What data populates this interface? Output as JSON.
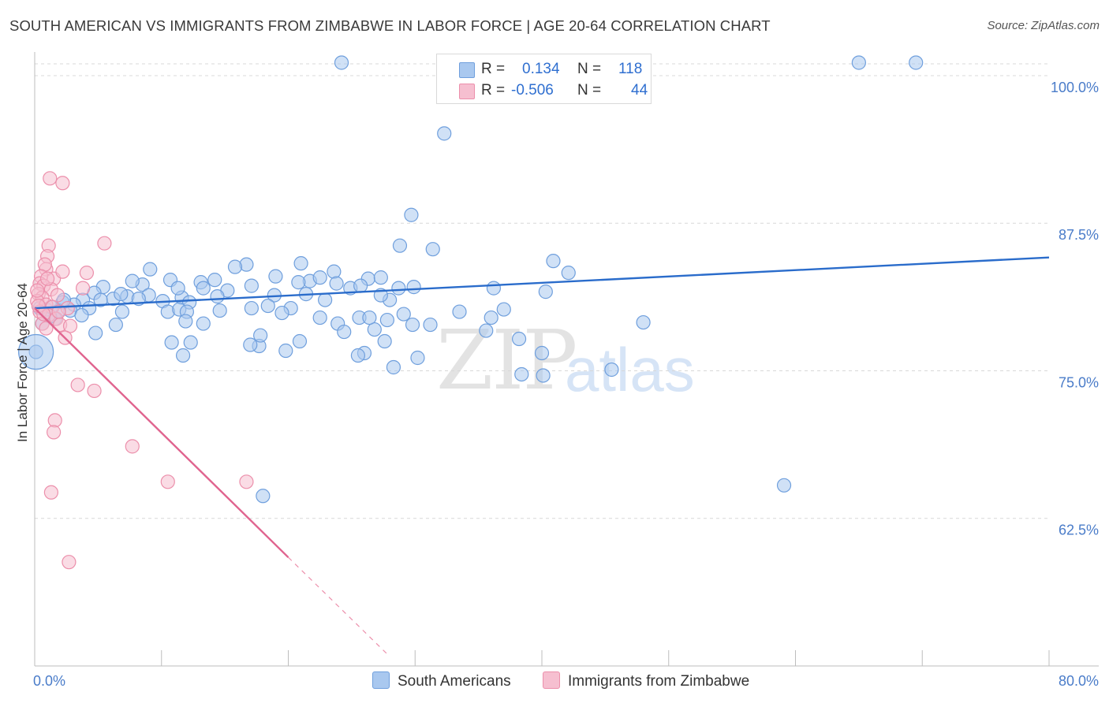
{
  "title": "SOUTH AMERICAN VS IMMIGRANTS FROM ZIMBABWE IN LABOR FORCE | AGE 20-64 CORRELATION CHART",
  "source": "Source: ZipAtlas.com",
  "watermark": {
    "zip": "ZIP",
    "atlas": "atlas"
  },
  "legend": {
    "r_label": "R =",
    "n_label": "N =",
    "south_american": {
      "r": "0.134",
      "n": "118"
    },
    "zimbabwe": {
      "r": "-0.506",
      "n": "44"
    }
  },
  "colors": {
    "south_american_fill": "#a9c8ef",
    "south_american_stroke": "#6f9fdd",
    "south_american_line": "#2a6ccb",
    "zimbabwe_fill": "#f6bfd0",
    "zimbabwe_stroke": "#ec8fab",
    "zimbabwe_line": "#e0648f",
    "axis_text": "#4a7cc9"
  },
  "chart_data": {
    "type": "scatter",
    "title": "SOUTH AMERICAN VS IMMIGRANTS FROM ZIMBABWE IN LABOR FORCE | AGE 20-64 CORRELATION CHART",
    "xlabel": "",
    "ylabel": "In Labor Force | Age 20-64",
    "xlim": [
      0,
      80
    ],
    "ylim": [
      50,
      102
    ],
    "x_tick_labels": [
      "0.0%",
      "80.0%"
    ],
    "y_ticks": [
      62.5,
      75.0,
      87.5,
      100.0
    ],
    "y_tick_labels": [
      "62.5%",
      "75.0%",
      "87.5%",
      "100.0%"
    ],
    "grid": true,
    "legend_position": "top-center",
    "series": [
      {
        "name": "South Americans",
        "r": 0.134,
        "n": 118,
        "trend": {
          "x": [
            0,
            80
          ],
          "y": [
            80.3,
            84.6
          ]
        },
        "points": [
          [
            24.2,
            101.1
          ],
          [
            32.5,
            101.1
          ],
          [
            65.0,
            101.1
          ],
          [
            69.5,
            101.1
          ],
          [
            32.3,
            95.1
          ],
          [
            29.7,
            88.2
          ],
          [
            28.8,
            85.6
          ],
          [
            31.4,
            85.3
          ],
          [
            40.9,
            84.3
          ],
          [
            42.1,
            83.3
          ],
          [
            16.7,
            84.0
          ],
          [
            21.0,
            84.1
          ],
          [
            23.6,
            83.4
          ],
          [
            28.0,
            81.0
          ],
          [
            29.9,
            82.1
          ],
          [
            36.2,
            82.0
          ],
          [
            18.9,
            81.4
          ],
          [
            17.1,
            82.2
          ],
          [
            15.2,
            81.8
          ],
          [
            15.8,
            83.8
          ],
          [
            19.0,
            83.0
          ],
          [
            21.7,
            82.6
          ],
          [
            22.5,
            82.9
          ],
          [
            20.8,
            82.5
          ],
          [
            23.8,
            82.4
          ],
          [
            24.9,
            82.0
          ],
          [
            26.3,
            82.8
          ],
          [
            25.7,
            82.2
          ],
          [
            27.3,
            82.9
          ],
          [
            28.7,
            82.0
          ],
          [
            9.1,
            83.6
          ],
          [
            10.7,
            82.7
          ],
          [
            13.1,
            82.5
          ],
          [
            14.2,
            82.7
          ],
          [
            8.5,
            82.3
          ],
          [
            7.7,
            82.6
          ],
          [
            7.3,
            81.3
          ],
          [
            9.0,
            81.4
          ],
          [
            10.1,
            80.9
          ],
          [
            11.6,
            81.2
          ],
          [
            12.2,
            80.8
          ],
          [
            11.3,
            82.0
          ],
          [
            5.4,
            82.1
          ],
          [
            4.7,
            81.6
          ],
          [
            6.2,
            81.1
          ],
          [
            3.8,
            81.0
          ],
          [
            3.1,
            80.6
          ],
          [
            4.3,
            80.3
          ],
          [
            2.8,
            80.1
          ],
          [
            2.2,
            80.8
          ],
          [
            1.9,
            80.1
          ],
          [
            1.6,
            79.4
          ],
          [
            0.9,
            80.2
          ],
          [
            1.2,
            79.6
          ],
          [
            0.6,
            79.0
          ],
          [
            0.4,
            80.3
          ],
          [
            0.1,
            76.6
          ],
          [
            4.8,
            78.2
          ],
          [
            6.4,
            78.9
          ],
          [
            6.9,
            80.0
          ],
          [
            10.5,
            80.0
          ],
          [
            11.4,
            80.2
          ],
          [
            12.0,
            80.0
          ],
          [
            11.9,
            79.2
          ],
          [
            13.3,
            79.0
          ],
          [
            10.8,
            77.4
          ],
          [
            12.3,
            77.4
          ],
          [
            14.6,
            80.1
          ],
          [
            17.1,
            80.3
          ],
          [
            18.4,
            80.5
          ],
          [
            20.2,
            80.3
          ],
          [
            19.5,
            79.9
          ],
          [
            22.5,
            79.5
          ],
          [
            23.9,
            79.0
          ],
          [
            24.4,
            78.3
          ],
          [
            25.6,
            79.5
          ],
          [
            26.8,
            78.5
          ],
          [
            27.6,
            77.5
          ],
          [
            29.1,
            79.8
          ],
          [
            29.8,
            78.9
          ],
          [
            31.2,
            78.9
          ],
          [
            30.2,
            76.1
          ],
          [
            26.0,
            76.5
          ],
          [
            25.5,
            76.3
          ],
          [
            28.3,
            75.3
          ],
          [
            35.6,
            78.4
          ],
          [
            38.2,
            77.7
          ],
          [
            40.0,
            76.5
          ],
          [
            38.4,
            74.7
          ],
          [
            40.1,
            74.6
          ],
          [
            45.5,
            75.1
          ],
          [
            48.0,
            79.1
          ],
          [
            40.3,
            81.7
          ],
          [
            36.0,
            79.5
          ],
          [
            27.3,
            81.4
          ],
          [
            17.7,
            77.1
          ],
          [
            19.8,
            76.7
          ],
          [
            20.9,
            77.5
          ],
          [
            17.0,
            77.2
          ],
          [
            11.7,
            76.3
          ],
          [
            17.8,
            78.0
          ],
          [
            21.4,
            81.5
          ],
          [
            22.9,
            81.0
          ],
          [
            14.4,
            81.3
          ],
          [
            13.3,
            82.0
          ],
          [
            8.2,
            81.1
          ],
          [
            6.8,
            81.5
          ],
          [
            5.2,
            81.0
          ],
          [
            3.7,
            79.7
          ],
          [
            1.3,
            80.4
          ],
          [
            2.3,
            81.0
          ],
          [
            18.0,
            64.4
          ],
          [
            59.1,
            65.3
          ],
          [
            27.8,
            79.3
          ],
          [
            33.5,
            80.0
          ],
          [
            26.4,
            79.5
          ],
          [
            37.0,
            80.2
          ]
        ]
      },
      {
        "name": "Immigrants from Zimbabwe",
        "r": -0.506,
        "n": 44,
        "trend": {
          "x": [
            0,
            20
          ],
          "y": [
            80.3,
            59.2
          ],
          "dashed_extension": {
            "x": [
              20,
              28
            ],
            "y": [
              59.2,
              50.8
            ]
          }
        },
        "points": [
          [
            1.2,
            91.3
          ],
          [
            2.2,
            90.9
          ],
          [
            5.5,
            85.8
          ],
          [
            1.1,
            85.6
          ],
          [
            1.0,
            84.7
          ],
          [
            0.9,
            83.6
          ],
          [
            0.8,
            84.0
          ],
          [
            0.5,
            83.0
          ],
          [
            1.5,
            82.8
          ],
          [
            2.2,
            83.4
          ],
          [
            4.1,
            83.3
          ],
          [
            0.4,
            82.4
          ],
          [
            0.7,
            82.2
          ],
          [
            1.3,
            81.9
          ],
          [
            0.3,
            81.5
          ],
          [
            0.6,
            81.2
          ],
          [
            1.8,
            81.4
          ],
          [
            0.2,
            80.9
          ],
          [
            0.9,
            80.6
          ],
          [
            1.4,
            80.4
          ],
          [
            2.6,
            80.3
          ],
          [
            0.4,
            80.0
          ],
          [
            1.1,
            79.7
          ],
          [
            1.7,
            79.4
          ],
          [
            0.6,
            79.0
          ],
          [
            2.0,
            78.9
          ],
          [
            2.8,
            78.8
          ],
          [
            0.9,
            78.6
          ],
          [
            2.4,
            77.8
          ],
          [
            0.3,
            80.5
          ],
          [
            3.4,
            73.8
          ],
          [
            4.7,
            73.3
          ],
          [
            1.6,
            70.8
          ],
          [
            1.5,
            69.8
          ],
          [
            7.7,
            68.6
          ],
          [
            10.5,
            65.6
          ],
          [
            16.7,
            65.6
          ],
          [
            1.3,
            64.7
          ],
          [
            2.7,
            58.8
          ],
          [
            3.8,
            82.0
          ],
          [
            1.0,
            82.8
          ],
          [
            0.7,
            79.8
          ],
          [
            1.9,
            80.0
          ],
          [
            0.2,
            81.8
          ]
        ]
      }
    ]
  },
  "bottom_legend": {
    "south_american": "South Americans",
    "zimbabwe": "Immigrants from Zimbabwe"
  }
}
